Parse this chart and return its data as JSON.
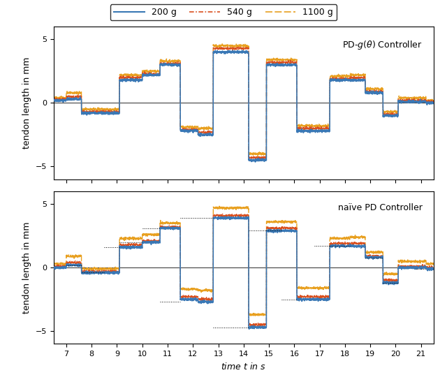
{
  "title1": "PD-$g(\\theta)$ Controller",
  "title2": "na\\u00efve PD Controller",
  "xlabel": "time $t$ in s",
  "ylabel": "tendon length in mm",
  "xlim": [
    6.5,
    21.5
  ],
  "ylim1": [
    -6,
    6
  ],
  "ylim2": [
    -6,
    6
  ],
  "yticks": [
    -5,
    0,
    5
  ],
  "xticks": [
    7,
    8,
    9,
    10,
    11,
    12,
    13,
    14,
    15,
    16,
    17,
    18,
    19,
    20,
    21
  ],
  "colors": {
    "200g": "#3a78b5",
    "540g": "#d94f1e",
    "1100g": "#e8a020"
  },
  "legend_labels": [
    "200 g",
    "540 g",
    "1100 g"
  ],
  "figsize": [
    6.4,
    5.47
  ],
  "dpi": 100,
  "background_color": "#ffffff"
}
